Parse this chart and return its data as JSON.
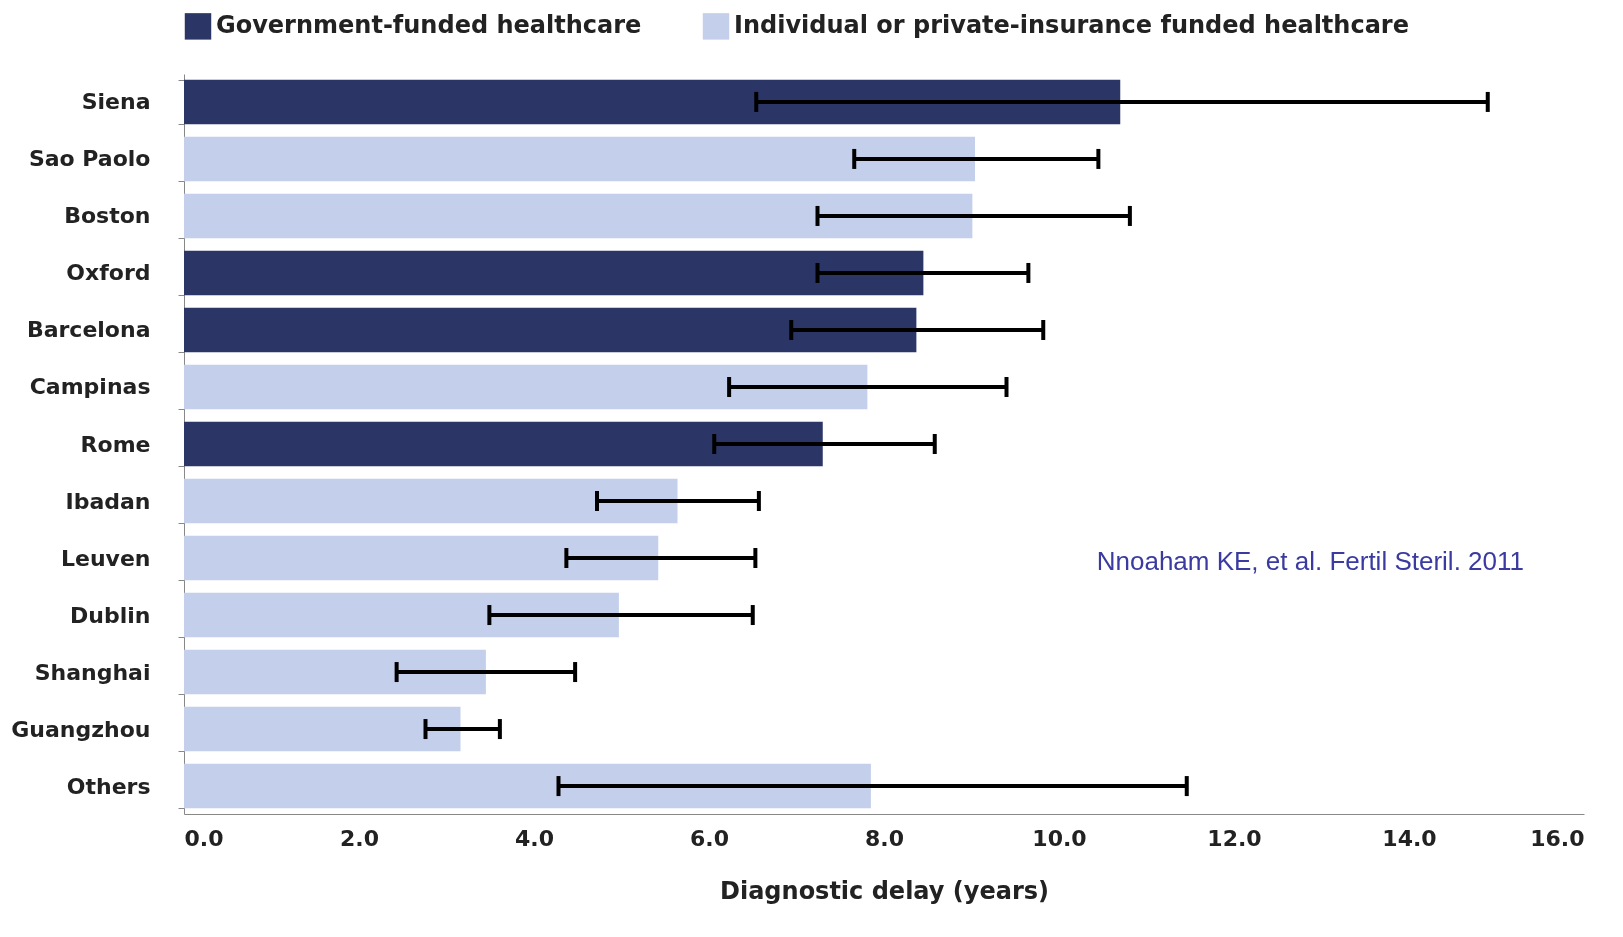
{
  "chart_data": {
    "type": "bar",
    "orientation": "horizontal",
    "xlabel": "Diagnostic delay (years)",
    "categories": [
      "Siena",
      "Sao Paolo",
      "Boston",
      "Oxford",
      "Barcelona",
      "Campinas",
      "Rome",
      "Ibadan",
      "Leuven",
      "Dublin",
      "Shanghai",
      "Guangzhou",
      "Others"
    ],
    "series": [
      {
        "name": "Government-funded healthcare",
        "color": "#2b3667",
        "values": [
          10.7,
          null,
          null,
          8.45,
          8.37,
          null,
          7.3,
          null,
          null,
          null,
          null,
          null,
          null
        ],
        "errors": [
          [
            6.54,
            14.9
          ],
          null,
          null,
          [
            7.24,
            9.65
          ],
          [
            6.94,
            9.82
          ],
          null,
          [
            6.06,
            8.58
          ],
          null,
          null,
          null,
          null,
          null,
          null
        ]
      },
      {
        "name": "Individual or private-insurance funded healthcare",
        "color": "#c3cfeb",
        "values": [
          null,
          9.04,
          9.01,
          null,
          null,
          7.81,
          null,
          5.64,
          5.42,
          4.97,
          3.45,
          3.16,
          7.85
        ],
        "errors": [
          null,
          [
            7.66,
            10.45
          ],
          [
            7.24,
            10.81
          ],
          null,
          null,
          [
            6.23,
            9.4
          ],
          null,
          [
            4.72,
            6.57
          ],
          [
            4.37,
            6.53
          ],
          [
            3.49,
            6.5
          ],
          [
            2.43,
            4.47
          ],
          [
            2.76,
            3.61
          ],
          [
            4.28,
            11.46
          ]
        ]
      }
    ],
    "xlim": [
      0,
      16
    ],
    "xticks": [
      {
        "value": 0,
        "label": "0.0"
      },
      {
        "value": 2,
        "label": "2.0"
      },
      {
        "value": 4,
        "label": "4.0"
      },
      {
        "value": 6,
        "label": "6.0"
      },
      {
        "value": 8,
        "label": "8.0"
      },
      {
        "value": 10,
        "label": "10.0"
      },
      {
        "value": 12,
        "label": "12.0"
      },
      {
        "value": 14,
        "label": "14.0"
      },
      {
        "value": 16,
        "label": "16.0"
      }
    ],
    "legend": "top",
    "grid": false,
    "annotations": [
      "Nnoaham KE, et al. Fertil Steril. 2011"
    ]
  }
}
